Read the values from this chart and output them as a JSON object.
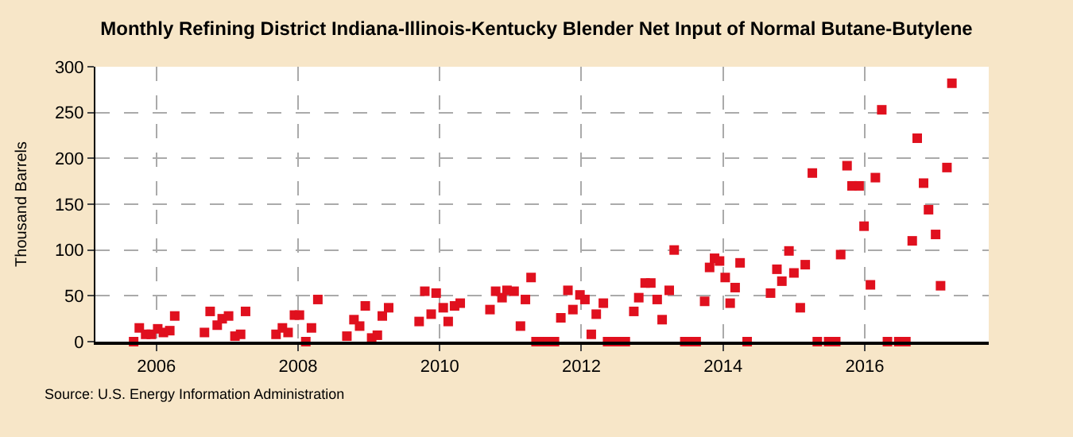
{
  "chart_data": {
    "type": "scatter",
    "title": "Monthly Refining District Indiana-Illinois-Kentucky Blender Net Input of Normal Butane-Butylene",
    "ylabel": "Thousand Barrels",
    "annotations": [
      "Source: U.S. Energy Information Administration"
    ],
    "x": [
      2005.68,
      2005.76,
      2005.85,
      2005.93,
      2006.02,
      2006.1,
      2006.19,
      2006.26,
      2006.68,
      2006.76,
      2006.86,
      2006.93,
      2007.02,
      2007.11,
      2007.19,
      2007.26,
      2007.69,
      2007.78,
      2007.86,
      2007.95,
      2008.02,
      2008.11,
      2008.19,
      2008.28,
      2008.69,
      2008.79,
      2008.87,
      2008.95,
      2009.04,
      2009.12,
      2009.19,
      2009.28,
      2009.71,
      2009.79,
      2009.88,
      2009.95,
      2010.05,
      2010.12,
      2010.21,
      2010.29,
      2010.71,
      2010.79,
      2010.88,
      2010.95,
      2011.05,
      2011.14,
      2011.21,
      2011.29,
      2011.36,
      2011.45,
      2011.53,
      2011.62,
      2011.71,
      2011.81,
      2011.88,
      2011.98,
      2012.05,
      2012.14,
      2012.21,
      2012.31,
      2012.37,
      2012.45,
      2012.54,
      2012.62,
      2012.74,
      2012.81,
      2012.9,
      2012.98,
      2013.07,
      2013.14,
      2013.24,
      2013.31,
      2013.46,
      2013.54,
      2013.62,
      2013.74,
      2013.81,
      2013.88,
      2013.95,
      2014.03,
      2014.1,
      2014.17,
      2014.24,
      2014.34,
      2014.67,
      2014.76,
      2014.83,
      2014.93,
      2015.0,
      2015.09,
      2015.16,
      2015.26,
      2015.33,
      2015.49,
      2015.59,
      2015.66,
      2015.75,
      2015.82,
      2015.92,
      2015.99,
      2016.08,
      2016.15,
      2016.24,
      2016.32,
      2016.48,
      2016.58,
      2016.67,
      2016.74,
      2016.83,
      2016.9,
      2017.0,
      2017.07,
      2017.16,
      2017.23
    ],
    "series": [
      {
        "color": "#e0101e",
        "values": [
          0,
          15,
          8,
          8,
          14,
          10,
          12,
          28,
          10,
          33,
          18,
          25,
          28,
          6,
          8,
          33,
          8,
          15,
          10,
          29,
          29,
          0,
          15,
          46,
          6,
          24,
          17,
          39,
          4,
          7,
          28,
          37,
          22,
          55,
          30,
          53,
          37,
          22,
          39,
          42,
          35,
          55,
          48,
          56,
          55,
          17,
          46,
          70,
          0,
          0,
          0,
          0,
          26,
          56,
          35,
          51,
          46,
          8,
          30,
          42,
          0,
          0,
          0,
          0,
          33,
          48,
          64,
          64,
          46,
          24,
          56,
          100,
          0,
          0,
          0,
          44,
          81,
          91,
          88,
          70,
          42,
          59,
          86,
          0,
          53,
          79,
          66,
          99,
          75,
          37,
          84,
          184,
          0,
          0,
          0,
          95,
          192,
          170,
          170,
          126,
          62,
          179,
          253,
          0,
          0,
          0,
          110,
          222,
          173,
          144,
          117,
          61,
          190,
          282
        ]
      }
    ],
    "xlim": [
      2005.14,
      2017.75
    ],
    "xticks": [
      2006,
      2008,
      2010,
      2012,
      2014,
      2016
    ],
    "ylim": [
      0,
      300
    ],
    "yticks": [
      0,
      50,
      100,
      150,
      200,
      250,
      300
    ],
    "grid": true,
    "marker": "square"
  }
}
